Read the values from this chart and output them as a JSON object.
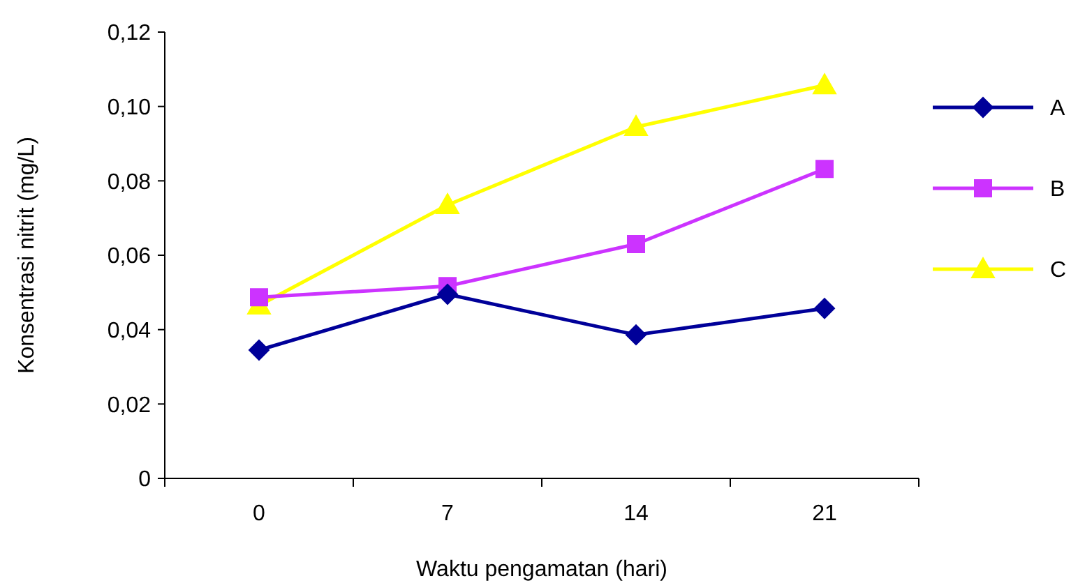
{
  "chart_data": {
    "type": "line",
    "xlabel": "Waktu pengamatan (hari)",
    "ylabel": "Konsentrasi nitrit (mg/L)",
    "categories": [
      "0",
      "7",
      "14",
      "21"
    ],
    "series": [
      {
        "name": "A",
        "color": "#000099",
        "marker": "diamond",
        "values": [
          0.0345,
          0.0495,
          0.0386,
          0.0457
        ]
      },
      {
        "name": "B",
        "color": "#cc33ff",
        "marker": "square",
        "values": [
          0.0487,
          0.0517,
          0.063,
          0.0832
        ]
      },
      {
        "name": "C",
        "color": "#ffff00",
        "marker": "triangle",
        "values": [
          0.0465,
          0.0735,
          0.0945,
          0.1057
        ]
      }
    ],
    "ylim": [
      0,
      0.12
    ],
    "yticks": [
      0,
      {
        "value": 0.02,
        "label": "0,02"
      },
      {
        "value": 0.04,
        "label": "0,04"
      },
      {
        "value": 0.06,
        "label": "0,06"
      },
      {
        "value": 0.08,
        "label": "0,08"
      },
      {
        "value": 0.1,
        "label": "0,10"
      },
      {
        "value": 0.12,
        "label": "0,12"
      }
    ],
    "grid": false,
    "legend": "right",
    "line_style": "solid"
  }
}
